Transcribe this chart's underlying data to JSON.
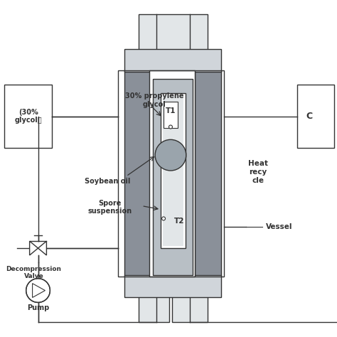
{
  "bg_color": "#ffffff",
  "line_color": "#333333",
  "dark_gray": "#8a9099",
  "mid_gray": "#b8bfc5",
  "light_gray": "#d0d5da",
  "lighter_gray": "#e2e6e8",
  "circle_fill": "#9aa4ac",
  "labels": {
    "left_box": "(30%\nglycol）",
    "propylene": "30% propylene\nglycol",
    "soybean": "Soybean oil",
    "spore": "Spore\nsuspension",
    "heat": "Heat\nrecy\ncle",
    "vessel": "Vessel",
    "decomp": "Decompression\nValve",
    "pump": "Pump",
    "T1": "T1",
    "T2": "T2",
    "C": "C"
  }
}
